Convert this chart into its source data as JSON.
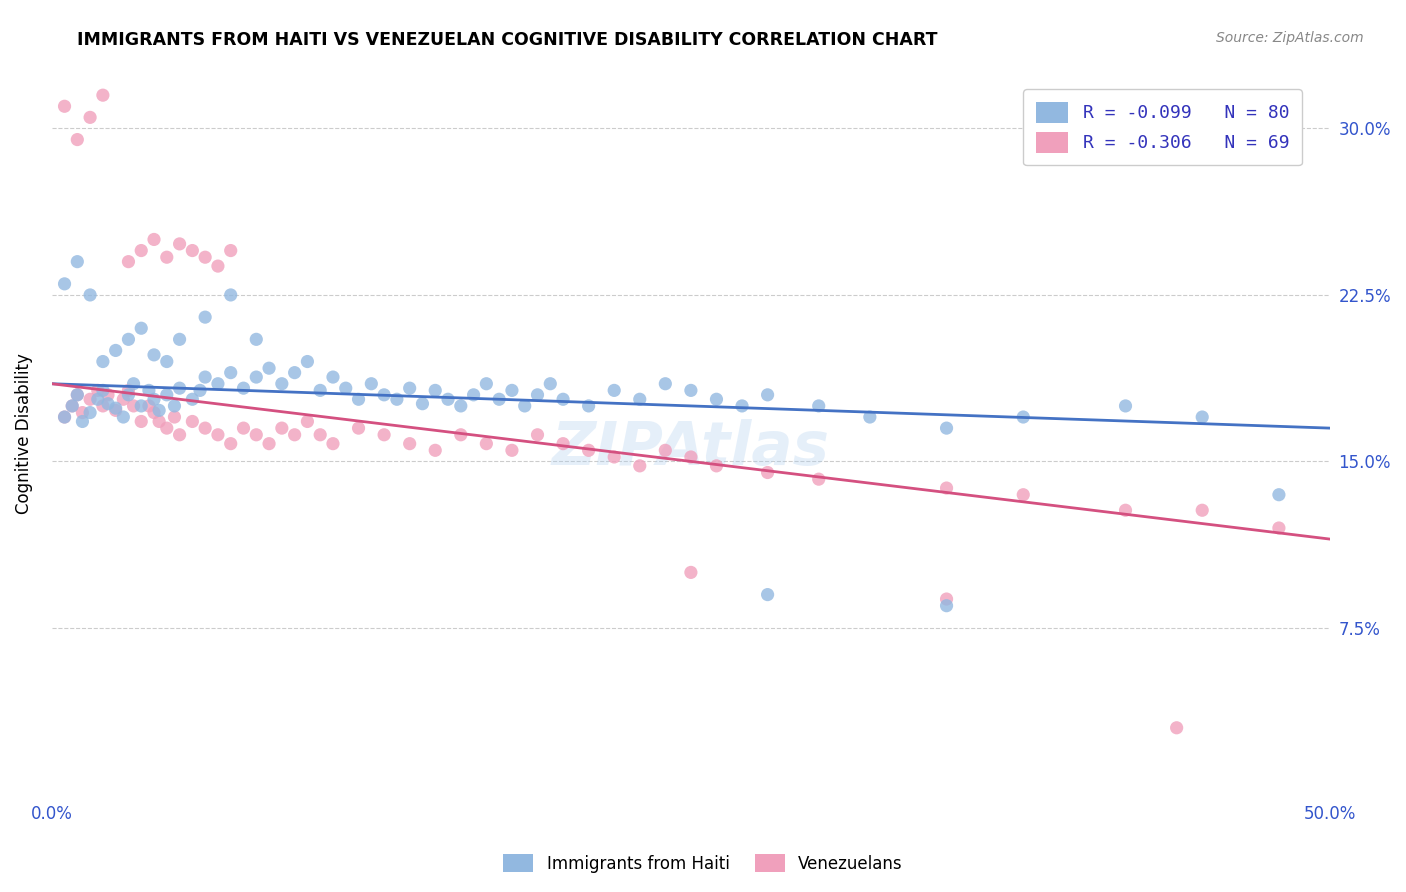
{
  "title": "IMMIGRANTS FROM HAITI VS VENEZUELAN COGNITIVE DISABILITY CORRELATION CHART",
  "source": "Source: ZipAtlas.com",
  "ylabel": "Cognitive Disability",
  "xlim": [
    0.0,
    0.5
  ],
  "ylim": [
    0.0,
    0.325
  ],
  "xtick_positions": [
    0.0,
    0.125,
    0.25,
    0.375,
    0.5
  ],
  "xtick_labels": [
    "0.0%",
    "",
    "",
    "",
    "50.0%"
  ],
  "ytick_positions": [
    0.075,
    0.15,
    0.225,
    0.3
  ],
  "ytick_labels": [
    "7.5%",
    "15.0%",
    "22.5%",
    "30.0%"
  ],
  "haiti_color": "#92b8e0",
  "venezuela_color": "#f0a0bc",
  "haiti_line_color": "#4472c4",
  "venezuela_line_color": "#d45080",
  "legend_text_color": "#3333bb",
  "R_haiti": -0.099,
  "N_haiti": 80,
  "R_venezuela": -0.306,
  "N_venezuela": 69,
  "haiti_line_x": [
    0.0,
    0.5
  ],
  "haiti_line_y": [
    0.185,
    0.165
  ],
  "venezuela_line_x": [
    0.0,
    0.5
  ],
  "venezuela_line_y": [
    0.185,
    0.115
  ],
  "haiti_x": [
    0.005,
    0.008,
    0.01,
    0.012,
    0.015,
    0.018,
    0.02,
    0.022,
    0.025,
    0.028,
    0.03,
    0.032,
    0.035,
    0.038,
    0.04,
    0.042,
    0.045,
    0.048,
    0.05,
    0.055,
    0.058,
    0.06,
    0.065,
    0.07,
    0.075,
    0.08,
    0.085,
    0.09,
    0.095,
    0.1,
    0.105,
    0.11,
    0.115,
    0.12,
    0.125,
    0.13,
    0.135,
    0.14,
    0.145,
    0.15,
    0.155,
    0.16,
    0.165,
    0.17,
    0.175,
    0.18,
    0.185,
    0.19,
    0.195,
    0.2,
    0.21,
    0.22,
    0.23,
    0.24,
    0.25,
    0.26,
    0.27,
    0.28,
    0.3,
    0.32,
    0.35,
    0.38,
    0.42,
    0.45,
    0.48,
    0.005,
    0.01,
    0.015,
    0.02,
    0.025,
    0.03,
    0.035,
    0.04,
    0.045,
    0.05,
    0.06,
    0.07,
    0.08,
    0.28,
    0.35
  ],
  "haiti_y": [
    0.17,
    0.175,
    0.18,
    0.168,
    0.172,
    0.178,
    0.182,
    0.176,
    0.174,
    0.17,
    0.18,
    0.185,
    0.175,
    0.182,
    0.178,
    0.173,
    0.18,
    0.175,
    0.183,
    0.178,
    0.182,
    0.188,
    0.185,
    0.19,
    0.183,
    0.188,
    0.192,
    0.185,
    0.19,
    0.195,
    0.182,
    0.188,
    0.183,
    0.178,
    0.185,
    0.18,
    0.178,
    0.183,
    0.176,
    0.182,
    0.178,
    0.175,
    0.18,
    0.185,
    0.178,
    0.182,
    0.175,
    0.18,
    0.185,
    0.178,
    0.175,
    0.182,
    0.178,
    0.185,
    0.182,
    0.178,
    0.175,
    0.18,
    0.175,
    0.17,
    0.165,
    0.17,
    0.175,
    0.17,
    0.135,
    0.23,
    0.24,
    0.225,
    0.195,
    0.2,
    0.205,
    0.21,
    0.198,
    0.195,
    0.205,
    0.215,
    0.225,
    0.205,
    0.09,
    0.085
  ],
  "venezuela_x": [
    0.005,
    0.008,
    0.01,
    0.012,
    0.015,
    0.018,
    0.02,
    0.022,
    0.025,
    0.028,
    0.03,
    0.032,
    0.035,
    0.038,
    0.04,
    0.042,
    0.045,
    0.048,
    0.05,
    0.055,
    0.06,
    0.065,
    0.07,
    0.075,
    0.08,
    0.085,
    0.09,
    0.095,
    0.1,
    0.105,
    0.11,
    0.12,
    0.13,
    0.14,
    0.15,
    0.16,
    0.17,
    0.18,
    0.19,
    0.2,
    0.21,
    0.22,
    0.23,
    0.24,
    0.25,
    0.03,
    0.035,
    0.04,
    0.045,
    0.05,
    0.055,
    0.06,
    0.065,
    0.07,
    0.26,
    0.28,
    0.3,
    0.35,
    0.38,
    0.42,
    0.45,
    0.48,
    0.005,
    0.01,
    0.015,
    0.02,
    0.25,
    0.35,
    0.44
  ],
  "venezuela_y": [
    0.17,
    0.175,
    0.18,
    0.172,
    0.178,
    0.182,
    0.175,
    0.18,
    0.173,
    0.178,
    0.182,
    0.175,
    0.168,
    0.175,
    0.172,
    0.168,
    0.165,
    0.17,
    0.162,
    0.168,
    0.165,
    0.162,
    0.158,
    0.165,
    0.162,
    0.158,
    0.165,
    0.162,
    0.168,
    0.162,
    0.158,
    0.165,
    0.162,
    0.158,
    0.155,
    0.162,
    0.158,
    0.155,
    0.162,
    0.158,
    0.155,
    0.152,
    0.148,
    0.155,
    0.152,
    0.24,
    0.245,
    0.25,
    0.242,
    0.248,
    0.245,
    0.242,
    0.238,
    0.245,
    0.148,
    0.145,
    0.142,
    0.138,
    0.135,
    0.128,
    0.128,
    0.12,
    0.31,
    0.295,
    0.305,
    0.315,
    0.1,
    0.088,
    0.03
  ]
}
